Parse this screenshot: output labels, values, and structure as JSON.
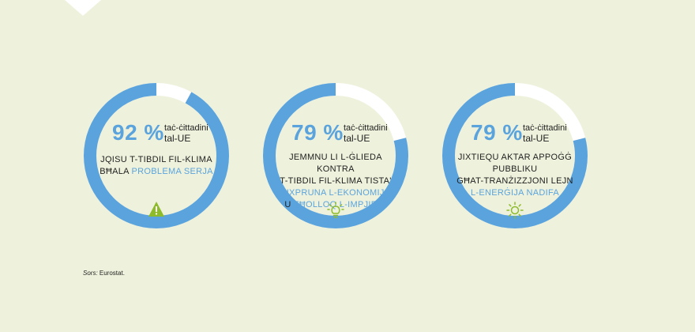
{
  "colors": {
    "background": "#eef2dc",
    "ring": "#5ba3dd",
    "ring_gap": "#ffffff",
    "accent": "#5ba3dd",
    "icon_green": "#8dbb2a"
  },
  "chart_data": [
    {
      "type": "pie",
      "values": [
        92,
        8
      ],
      "percent_text": "92 %",
      "unit_line1": "taċ-ċittadini",
      "unit_line2": "tal-UE",
      "description_plain": [
        "Jqisu t-tibdil fil-klima",
        "bħala "
      ],
      "description_highlight": "problema serja",
      "icon": "warning-icon"
    },
    {
      "type": "pie",
      "values": [
        79,
        21
      ],
      "percent_text": "79 %",
      "unit_line1": "taċ-ċittadini",
      "unit_line2": "tal-UE",
      "description_plain": [
        "Jemmnu li l-ġlieda kontra",
        "t-tibdil fil-klima tista'"
      ],
      "description_highlight": "tixpruna l-ekonomija",
      "description_tail_plain": "u ",
      "description_tail_highlight": "tħolloq l-impjiegi",
      "icon": "lightbulb-icon"
    },
    {
      "type": "pie",
      "values": [
        79,
        21
      ],
      "percent_text": "79 %",
      "unit_line1": "taċ-ċittadini",
      "unit_line2": "tal-UE",
      "description_plain": [
        "Jixtiequ aktar appoġġ",
        "pubbliku",
        "għat-tranżizzjoni lejn"
      ],
      "description_highlight": "l-enerġija nadifa",
      "icon": "sun-icon"
    }
  ],
  "source": {
    "label": "Sors:",
    "text": " Eurostat."
  }
}
